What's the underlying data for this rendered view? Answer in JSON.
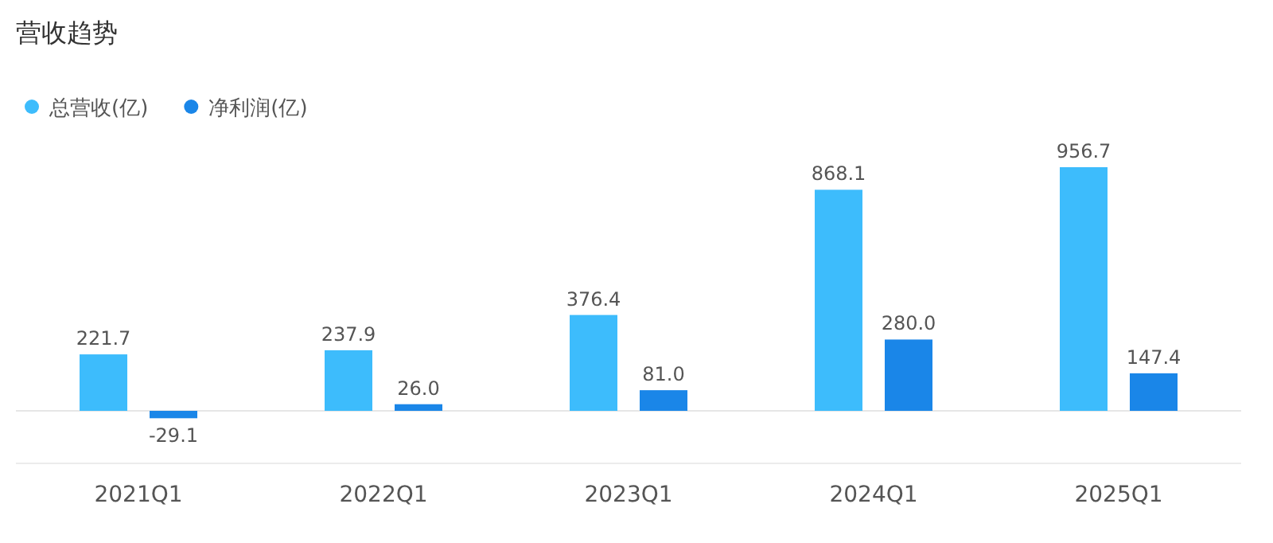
{
  "chart_data": {
    "type": "bar",
    "title": "营收趋势",
    "categories": [
      "2021Q1",
      "2022Q1",
      "2023Q1",
      "2024Q1",
      "2025Q1"
    ],
    "series": [
      {
        "name": "总营收(亿)",
        "color": "#3dbcfc",
        "values": [
          221.7,
          237.9,
          376.4,
          868.1,
          956.7
        ],
        "value_labels": [
          "221.7",
          "237.9",
          "376.4",
          "868.1",
          "956.7"
        ]
      },
      {
        "name": "净利润(亿)",
        "color": "#1a86e8",
        "values": [
          -29.1,
          26.0,
          81.0,
          280.0,
          147.4
        ],
        "value_labels": [
          "-29.1",
          "26.0",
          "81.0",
          "280.0",
          "147.4"
        ]
      }
    ],
    "legend": "top left"
  }
}
